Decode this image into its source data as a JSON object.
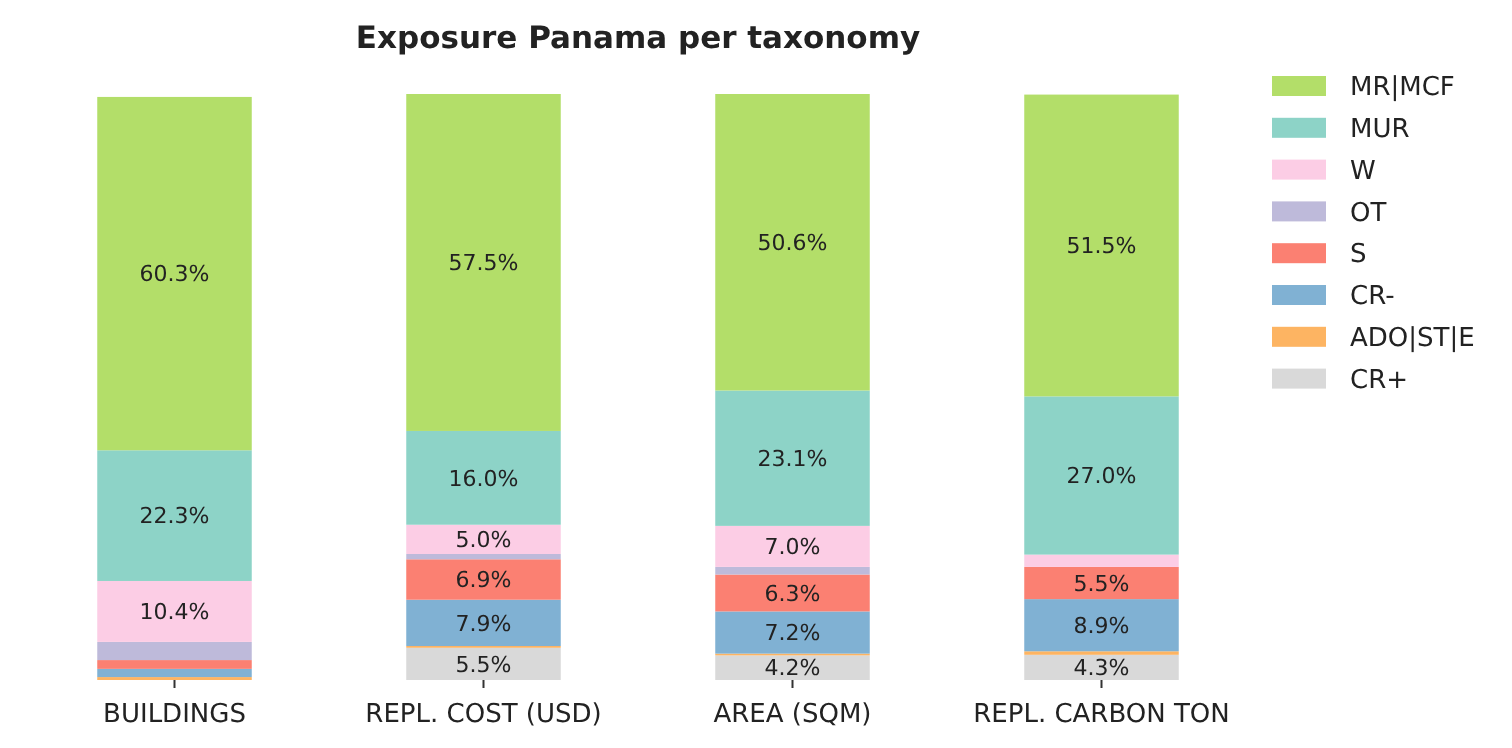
{
  "chart_data": {
    "type": "bar",
    "stacked": true,
    "title": "Exposure Panama per taxonomy",
    "categories": [
      "BUILDINGS",
      "REPL. COST (USD)",
      "AREA (SQM)",
      "REPL. CARBON TON"
    ],
    "ylim": [
      0,
      100
    ],
    "tick_labels": "x",
    "legend": "right",
    "series": [
      {
        "name": "CR+",
        "color": "#d9d9d9",
        "values": [
          null,
          5.5,
          4.2,
          4.3
        ],
        "value_labels": [
          null,
          "5.5%",
          "4.2%",
          "4.3%"
        ]
      },
      {
        "name": "ADO|ST|E",
        "color": "#fdb462",
        "values": [
          0.5,
          0.3,
          0.3,
          0.6
        ],
        "value_labels": [
          null,
          null,
          null,
          null
        ]
      },
      {
        "name": "CR-",
        "color": "#80b1d3",
        "values": [
          1.4,
          7.9,
          7.2,
          8.9
        ],
        "value_labels": [
          null,
          "7.9%",
          "7.2%",
          "8.9%"
        ]
      },
      {
        "name": "S",
        "color": "#fb8072",
        "values": [
          1.5,
          6.9,
          6.3,
          5.5
        ],
        "value_labels": [
          null,
          "6.9%",
          "6.3%",
          "5.5%"
        ]
      },
      {
        "name": "OT",
        "color": "#bebada",
        "values": [
          3.1,
          0.9,
          1.3,
          null
        ],
        "value_labels": [
          null,
          null,
          null,
          null
        ]
      },
      {
        "name": "W",
        "color": "#fccde5",
        "values": [
          10.4,
          5.0,
          7.0,
          2.1
        ],
        "value_labels": [
          "10.4%",
          "5.0%",
          "7.0%",
          null
        ]
      },
      {
        "name": "MUR",
        "color": "#8dd3c7",
        "values": [
          22.3,
          16.0,
          23.1,
          27.0
        ],
        "value_labels": [
          "22.3%",
          "16.0%",
          "23.1%",
          "27.0%"
        ]
      },
      {
        "name": "MR|MCF",
        "color": "#b3de69",
        "values": [
          60.3,
          57.5,
          50.6,
          51.5
        ],
        "value_labels": [
          "60.3%",
          "57.5%",
          "50.6%",
          "51.5%"
        ]
      }
    ]
  }
}
